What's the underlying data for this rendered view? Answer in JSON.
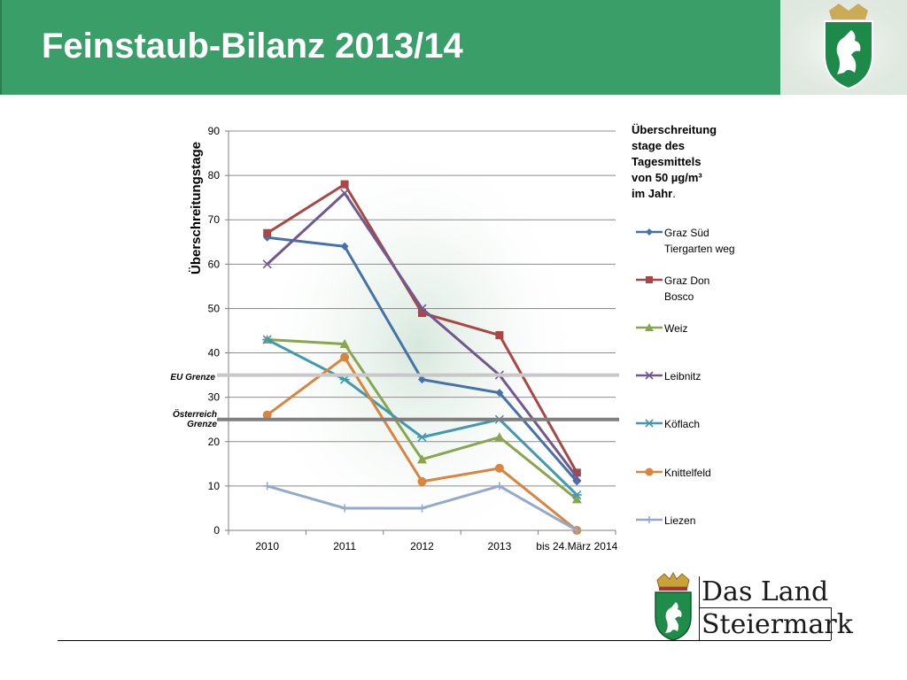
{
  "title": "Feinstaub-Bilanz 2013/14",
  "legend_title": {
    "line1": "Überschreitung",
    "line2": "stage des",
    "line3": "Tagesmittels",
    "line4": "von 50 µg/m³",
    "line5": "im Jahr",
    "line5_end": "."
  },
  "reference_labels": {
    "eu": "EU Grenze",
    "at_line1": "Österreich",
    "at_line2": "Grenze"
  },
  "logo": {
    "line1": "Das Land",
    "line2": "Steiermark"
  },
  "chart_data": {
    "type": "line",
    "title": "",
    "xlabel": "",
    "ylabel": "Überschreitungstage",
    "categories": [
      "2010",
      "2011",
      "2012",
      "2013",
      "bis 24.März 2014"
    ],
    "ylim": [
      0,
      90
    ],
    "yticks": [
      0,
      10,
      20,
      30,
      40,
      50,
      60,
      70,
      80,
      90
    ],
    "grid": true,
    "legend_position": "right",
    "reference_lines": [
      {
        "label": "EU Grenze",
        "value": 35,
        "color": "#c8c8c8"
      },
      {
        "label": "Österreich Grenze",
        "value": 25,
        "color": "#7f7f7f"
      }
    ],
    "series": [
      {
        "name": "Graz Süd Tiergarten weg",
        "color": "#4572a7",
        "marker": "diamond",
        "values": [
          66,
          64,
          34,
          31,
          11
        ]
      },
      {
        "name": "Graz Don Bosco",
        "color": "#aa4643",
        "marker": "square",
        "values": [
          67,
          78,
          49,
          44,
          13
        ]
      },
      {
        "name": "Weiz",
        "color": "#89a54e",
        "marker": "triangle",
        "values": [
          43,
          42,
          16,
          21,
          7
        ]
      },
      {
        "name": "Leibnitz",
        "color": "#71588f",
        "marker": "x",
        "values": [
          60,
          76,
          50,
          35,
          12
        ]
      },
      {
        "name": "Köflach",
        "color": "#4198af",
        "marker": "star",
        "values": [
          43,
          34,
          21,
          25,
          8
        ]
      },
      {
        "name": "Knittelfeld",
        "color": "#db843d",
        "marker": "circle",
        "values": [
          26,
          39,
          11,
          14,
          0
        ]
      },
      {
        "name": "Liezen",
        "color": "#93a9cf",
        "marker": "plus",
        "values": [
          10,
          5,
          5,
          10,
          0
        ]
      }
    ]
  }
}
